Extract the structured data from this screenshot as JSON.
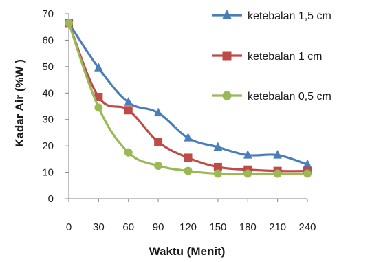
{
  "chart_data": {
    "type": "line",
    "title": "",
    "xlabel": "Waktu (Menit)",
    "ylabel": "Kadar Air (%W )",
    "x": [
      0,
      30,
      60,
      90,
      120,
      150,
      180,
      210,
      240
    ],
    "x_tick_labels": [
      "0",
      "30",
      "60",
      "90",
      "120",
      "150",
      "180",
      "210",
      "240"
    ],
    "y_tick_labels": [
      "0",
      "10",
      "20",
      "30",
      "40",
      "50",
      "60",
      "70"
    ],
    "ylim": [
      0,
      70
    ],
    "xlim": [
      0,
      240
    ],
    "grid": false,
    "legend_position": "top-right",
    "series": [
      {
        "name": "ketebalan 1,5 cm",
        "color": "#4a7ebb",
        "marker": "triangle",
        "values": [
          66.5,
          49.5,
          36.5,
          32.5,
          23,
          19.5,
          16.5,
          16.5,
          13
        ]
      },
      {
        "name": "ketebalan 1 cm",
        "color": "#be4b48",
        "marker": "square",
        "values": [
          66.5,
          38.5,
          33.5,
          21.5,
          15.5,
          12,
          11,
          10.5,
          10.5
        ]
      },
      {
        "name": "ketebalan 0,5 cm",
        "color": "#98b954",
        "marker": "circle",
        "values": [
          66.5,
          34.5,
          17.5,
          12.5,
          10.5,
          9.5,
          9.5,
          9.5,
          9.5
        ]
      }
    ]
  }
}
